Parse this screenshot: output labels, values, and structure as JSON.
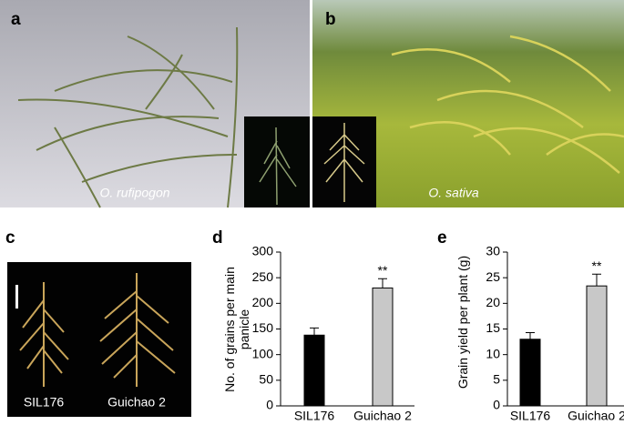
{
  "panels": {
    "a": {
      "label": "a",
      "caption": "O. rufipogon"
    },
    "b": {
      "label": "b",
      "caption": "O. sativa"
    },
    "c": {
      "label": "c",
      "captions": [
        "SIL176",
        "Guichao 2"
      ]
    }
  },
  "chart_data": [
    {
      "type": "bar",
      "panel_label": "d",
      "ylabel": "No. of grains per main panicle",
      "categories": [
        "SIL176",
        "Guichao 2"
      ],
      "values": [
        138,
        230
      ],
      "errors": [
        14,
        18
      ],
      "colors": [
        "#000000",
        "#c8c8c8"
      ],
      "value_annotations": [
        null,
        "**"
      ],
      "ylim": [
        0,
        300
      ],
      "yticks": [
        0,
        50,
        100,
        150,
        200,
        250,
        300
      ]
    },
    {
      "type": "bar",
      "panel_label": "e",
      "ylabel": "Grain yield per plant (g)",
      "categories": [
        "SIL176",
        "Guichao 2"
      ],
      "values": [
        13,
        23.4
      ],
      "errors": [
        1.3,
        2.3
      ],
      "colors": [
        "#000000",
        "#c8c8c8"
      ],
      "value_annotations": [
        null,
        "**"
      ],
      "ylim": [
        0,
        30
      ],
      "yticks": [
        0,
        5,
        10,
        15,
        20,
        25,
        30
      ]
    }
  ]
}
